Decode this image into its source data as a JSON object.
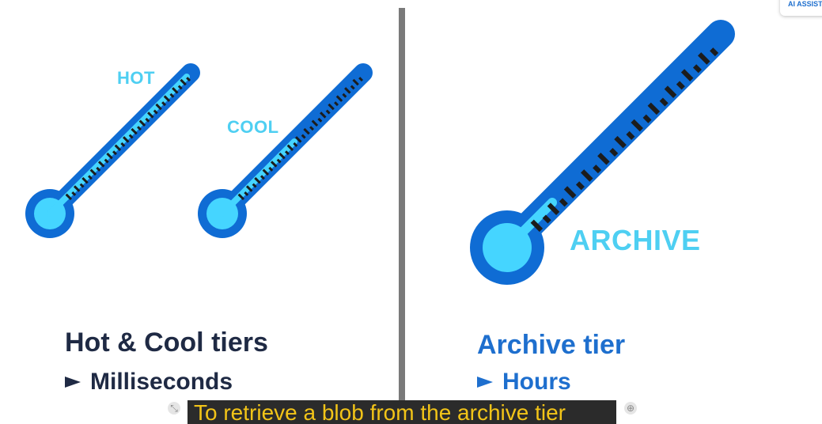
{
  "labels": {
    "hot": "HOT",
    "cool": "COOL",
    "archive": "ARCHIVE"
  },
  "left": {
    "heading": "Hot & Cool tiers",
    "subtitle": "Milliseconds"
  },
  "right": {
    "heading": "Archive tier",
    "subtitle": "Hours"
  },
  "caption": {
    "text": "To retrieve a blob from the archive tier"
  },
  "ai_assistant": {
    "label": "AI ASSISTANT"
  },
  "colors": {
    "tube_outer": "#0f6cd4",
    "tube_inner": "#45d5ff",
    "ticks": "#1c1c1c",
    "label": "#4ecff2",
    "heading_dark": "#1f2a44",
    "heading_blue": "#1e6fce",
    "caption_bg": "#2b2b2b",
    "caption_text": "#f2c418",
    "divider": "#7a7a7a"
  }
}
